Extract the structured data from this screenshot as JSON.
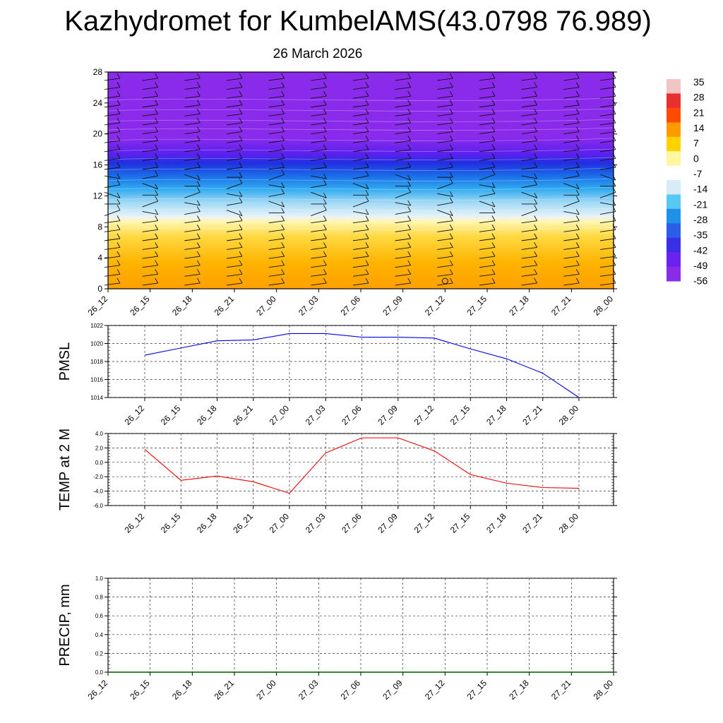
{
  "title": "Kazhydromet for KumbelAMS(43.0798 76.989)",
  "subtitle": "26 March 2026",
  "time_labels": [
    "26_12",
    "26_15",
    "26_18",
    "26_21",
    "27_00",
    "27_03",
    "27_06",
    "27_09",
    "27_12",
    "27_15",
    "27_18",
    "27_21",
    "28_00"
  ],
  "colorbar": {
    "labels": [
      "35",
      "28",
      "21",
      "14",
      "7",
      "0",
      "-7",
      "-14",
      "-21",
      "-28",
      "-35",
      "-42",
      "-49",
      "-56"
    ],
    "colors": [
      "#f2c4c4",
      "#e83030",
      "#ff4a00",
      "#ff9a00",
      "#ffd200",
      "#fff7a0",
      "#ffffff",
      "#d8ecf8",
      "#58c8f4",
      "#1e90e8",
      "#2a5ee8",
      "#3b2ee8",
      "#6a22f0",
      "#8a2be8"
    ]
  },
  "chart_data": [
    {
      "type": "heatmap",
      "name": "cross-section",
      "ylim": [
        0,
        28
      ],
      "yticks": [
        0,
        4,
        8,
        12,
        16,
        20,
        24,
        28
      ],
      "xlabel": "",
      "ylabel": "",
      "description_layers": [
        {
          "from": 0,
          "to": 9.5,
          "range": "0 to 7"
        },
        {
          "from": 9.5,
          "to": 13.5,
          "range": "-14 to -35"
        },
        {
          "from": 13.5,
          "to": 17,
          "range": "-42 to -56"
        },
        {
          "from": 17,
          "to": 28,
          "range": "-56"
        }
      ]
    },
    {
      "type": "line",
      "name": "PMSL",
      "ylabel": "PMSL",
      "ylim": [
        1014,
        1022
      ],
      "yticks": [
        "1014",
        "1016",
        "1018",
        "1020",
        "1022"
      ],
      "values": [
        1018.7,
        1019.5,
        1020.3,
        1020.4,
        1021.1,
        1021.1,
        1020.7,
        1020.7,
        1020.6,
        1019.4,
        1018.3,
        1016.7,
        1014.0
      ],
      "color": "#0000ee"
    },
    {
      "type": "line",
      "name": "TEMP",
      "ylabel": "TEMP at 2 M",
      "ylim": [
        -6,
        4
      ],
      "yticks": [
        "-6.0",
        "-4.0",
        "-2.0",
        "0.0",
        "2.0",
        "4.0"
      ],
      "values": [
        1.8,
        -2.5,
        -1.9,
        -2.7,
        -4.3,
        1.3,
        3.4,
        3.4,
        1.6,
        -1.7,
        -2.9,
        -3.5,
        -3.6
      ],
      "color": "#ee0000"
    },
    {
      "type": "line",
      "name": "PRECIP",
      "ylabel": "PRECIP, mm",
      "ylim": [
        0,
        1
      ],
      "yticks": [
        "0.0",
        "0.2",
        "0.4",
        "0.6",
        "0.8",
        "1.0"
      ],
      "values": [
        0,
        0,
        0,
        0,
        0,
        0,
        0,
        0,
        0,
        0,
        0,
        0,
        0
      ],
      "color": "#006400"
    }
  ]
}
